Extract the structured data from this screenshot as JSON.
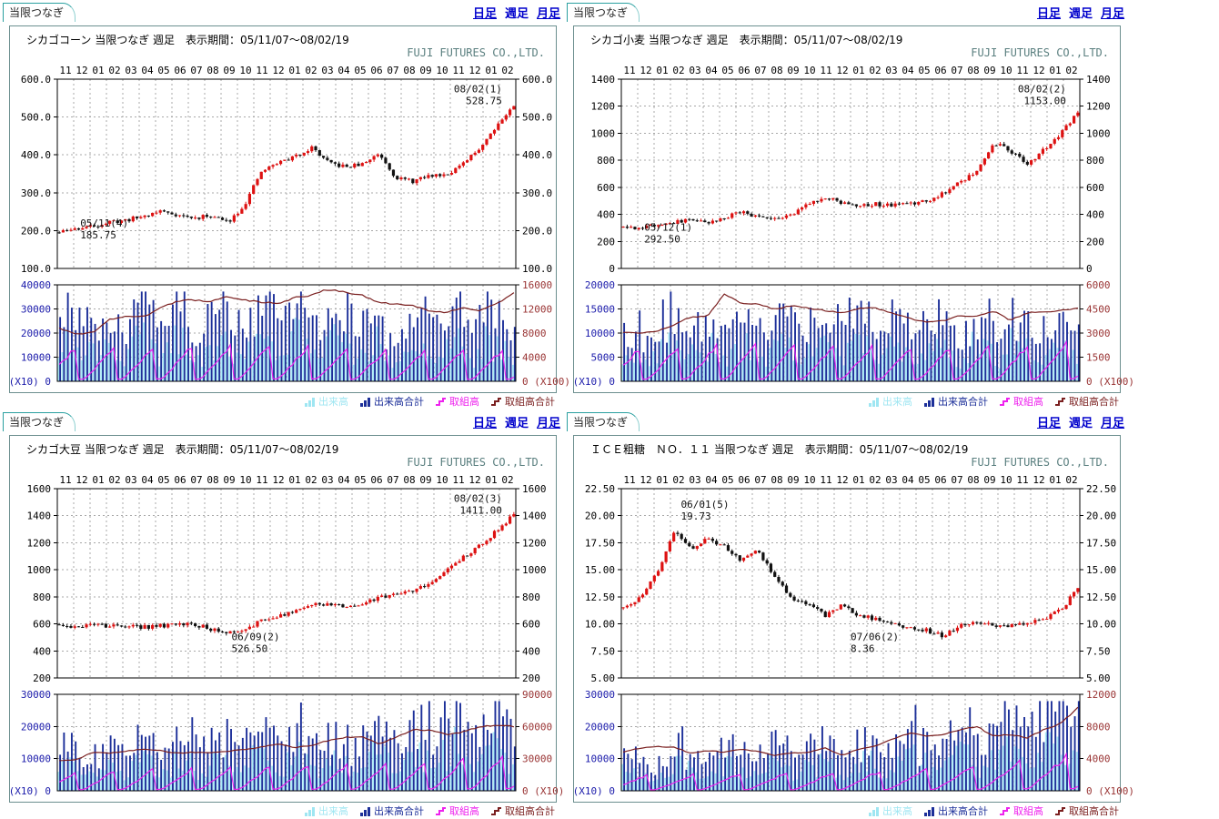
{
  "shared": {
    "tab_label": "当限つなぎ",
    "links": {
      "daily": "日足",
      "weekly": "週足",
      "monthly": "月足"
    },
    "brand": "FUJI FUTURES CO.,LTD.",
    "legend": [
      {
        "label": "出来高",
        "type": "bars",
        "color": "#9fe6f2"
      },
      {
        "label": "出来高合計",
        "type": "bars",
        "color": "#1c2f99"
      },
      {
        "label": "取組高",
        "type": "line",
        "color": "#ee22ee"
      },
      {
        "label": "取組高合計",
        "type": "line",
        "color": "#7a1f1f"
      }
    ],
    "colors": {
      "candle_up": "#dd1111",
      "candle_down": "#111111",
      "volume_week_bar": "#aaeaf6",
      "volume_total_bar": "#1c2f99",
      "open_interest_line": "#ee22ee",
      "open_interest_total_line": "#7a1f1f",
      "left_axis_text": "#1a1aaa",
      "right_axis_text": "#993333",
      "link": "#0000cc",
      "tab_border": "#2aa0a0",
      "brand_text": "#5a7f7f"
    }
  },
  "panels": [
    {
      "title": "シカゴコーン 当限つなぎ 週足　表示期間：05/11/07～08/02/19"
    },
    {
      "title": "シカゴ小麦 当限つなぎ 週足　表示期間：05/11/07～08/02/19"
    },
    {
      "title": "シカゴ大豆 当限つなぎ 週足　表示期間：05/11/07～08/02/19"
    },
    {
      "title": "ＩＣＥ粗糖　ＮＯ．１１ 当限つなぎ 週足　表示期間：05/11/07～08/02/19"
    }
  ],
  "chart_data": [
    {
      "type": "candlestick+volume",
      "name": "シカゴコーン 当限つなぎ 週足",
      "seed": 11,
      "x_months": [
        "11",
        "12",
        "01",
        "02",
        "03",
        "04",
        "05",
        "06",
        "07",
        "08",
        "09",
        "10",
        "11",
        "12",
        "01",
        "02",
        "03",
        "04",
        "05",
        "06",
        "07",
        "08",
        "09",
        "10",
        "11",
        "12",
        "01",
        "02"
      ],
      "price": {
        "ylim": [
          100,
          600
        ],
        "ticks": [
          600,
          500,
          400,
          300,
          200,
          100
        ],
        "tick_labels": [
          "600.0",
          "500.0",
          "400.0",
          "300.0",
          "200.0",
          "100.0"
        ],
        "weeks": 118,
        "monthly_close_anchors": [
          195,
          205,
          212,
          222,
          228,
          238,
          252,
          242,
          232,
          240,
          222,
          268,
          355,
          380,
          395,
          420,
          378,
          368,
          375,
          405,
          340,
          330,
          345,
          350,
          375,
          420,
          480,
          528.75
        ]
      },
      "annotations": [
        {
          "l1": "05/11(4)",
          "l2": "185.75",
          "fx": 0.05,
          "fy": 0.78,
          "anchor": "start"
        },
        {
          "l1": "08/02(1)",
          "l2": "528.75",
          "fx": 0.97,
          "fy": 0.07,
          "anchor": "end"
        }
      ],
      "volume": {
        "left_max": 40000,
        "right_max": 16000,
        "left_mult": "(X10)",
        "right_mult": "(X100)",
        "left_ticks": [
          {
            "label": "40000",
            "f": 1
          },
          {
            "label": "30000",
            "f": 0.75
          },
          {
            "label": "20000",
            "f": 0.5
          },
          {
            "label": "10000",
            "f": 0.25
          }
        ],
        "right_ticks": [
          {
            "label": "16000",
            "f": 1
          },
          {
            "label": "12000",
            "f": 0.75
          },
          {
            "label": "8000",
            "f": 0.5
          },
          {
            "label": "4000",
            "f": 0.25
          }
        ],
        "trend": [
          1,
          1.05,
          1.1,
          0.95,
          1.0
        ],
        "oi_cycle_weeks": 10,
        "oi_peak": 0.37,
        "oi_total_anchors": [
          8800,
          7800,
          8100,
          10300,
          10700,
          10700,
          12100,
          13300,
          13500,
          13200,
          14000,
          13500,
          13100,
          12900,
          13900,
          14300,
          15300,
          14700,
          14300,
          13100,
          12800,
          12500,
          11700,
          11400,
          12200,
          11700,
          13000,
          14600
        ]
      }
    },
    {
      "type": "candlestick+volume",
      "name": "シカゴ小麦 当限つなぎ 週足",
      "seed": 22,
      "x_months": [
        "11",
        "12",
        "01",
        "02",
        "03",
        "04",
        "05",
        "06",
        "07",
        "08",
        "09",
        "10",
        "11",
        "12",
        "01",
        "02",
        "03",
        "04",
        "05",
        "06",
        "07",
        "08",
        "09",
        "10",
        "11",
        "12",
        "01",
        "02"
      ],
      "price": {
        "ylim": [
          0,
          1400
        ],
        "ticks": [
          1400,
          1200,
          1000,
          800,
          600,
          400,
          200,
          0
        ],
        "tick_labels": [
          "1400",
          "1200",
          "1000",
          "800",
          "600",
          "400",
          "200",
          "0"
        ],
        "weeks": 118,
        "monthly_close_anchors": [
          305,
          300,
          330,
          345,
          360,
          345,
          375,
          415,
          385,
          365,
          395,
          480,
          530,
          490,
          470,
          475,
          465,
          480,
          500,
          560,
          640,
          720,
          930,
          870,
          770,
          880,
          1000,
          1153
        ]
      },
      "annotations": [
        {
          "l1": "05/12(1)",
          "l2": "292.50",
          "fx": 0.05,
          "fy": 0.8,
          "anchor": "start"
        },
        {
          "l1": "08/02(2)",
          "l2": "1153.00",
          "fx": 0.97,
          "fy": 0.07,
          "anchor": "end"
        }
      ],
      "volume": {
        "left_max": 20000,
        "right_max": 6000,
        "left_mult": "(X10)",
        "right_mult": "(X100)",
        "left_ticks": [
          {
            "label": "20000",
            "f": 1
          },
          {
            "label": "15000",
            "f": 0.75
          },
          {
            "label": "10000",
            "f": 0.5
          },
          {
            "label": "5000",
            "f": 0.25
          }
        ],
        "right_ticks": [
          {
            "label": "6000",
            "f": 1
          },
          {
            "label": "4500",
            "f": 0.75
          },
          {
            "label": "3000",
            "f": 0.5
          },
          {
            "label": "1500",
            "f": 0.25
          }
        ],
        "trend": [
          0.85,
          1.0,
          0.95,
          0.9,
          1.05
        ],
        "oi_cycle_weeks": 10,
        "oi_peak": 0.42,
        "oi_total_anchors": [
          3050,
          3000,
          3100,
          3500,
          4000,
          4050,
          5400,
          4850,
          4800,
          4500,
          4700,
          4550,
          4400,
          4250,
          4550,
          4550,
          4250,
          3900,
          3700,
          3750,
          4100,
          4050,
          4350,
          3800,
          4250,
          4350,
          4400,
          4550
        ]
      }
    },
    {
      "type": "candlestick+volume",
      "name": "シカゴ大豆 当限つなぎ 週足",
      "seed": 33,
      "x_months": [
        "11",
        "12",
        "01",
        "02",
        "03",
        "04",
        "05",
        "06",
        "07",
        "08",
        "09",
        "10",
        "11",
        "12",
        "01",
        "02",
        "03",
        "04",
        "05",
        "06",
        "07",
        "08",
        "09",
        "10",
        "11",
        "12",
        "01",
        "02"
      ],
      "price": {
        "ylim": [
          200,
          1600
        ],
        "ticks": [
          1600,
          1400,
          1200,
          1000,
          800,
          600,
          400,
          200
        ],
        "tick_labels": [
          "1600",
          "1400",
          "1200",
          "1000",
          "800",
          "600",
          "400",
          "200"
        ],
        "weeks": 118,
        "monthly_close_anchors": [
          590,
          570,
          600,
          580,
          590,
          575,
          585,
          595,
          600,
          560,
          535,
          560,
          620,
          660,
          690,
          740,
          750,
          720,
          740,
          800,
          820,
          835,
          900,
          1000,
          1090,
          1180,
          1290,
          1411
        ]
      },
      "annotations": [
        {
          "l1": "06/09(2)",
          "l2": "526.50",
          "fx": 0.38,
          "fy": 0.8,
          "anchor": "start"
        },
        {
          "l1": "08/02(3)",
          "l2": "1411.00",
          "fx": 0.97,
          "fy": 0.07,
          "anchor": "end"
        }
      ],
      "volume": {
        "left_max": 30000,
        "right_max": 90000,
        "left_mult": "(X10)",
        "right_mult": "(X10)",
        "left_ticks": [
          {
            "label": "30000",
            "f": 1
          },
          {
            "label": "20000",
            "f": 0.6667
          },
          {
            "label": "10000",
            "f": 0.3333
          }
        ],
        "right_ticks": [
          {
            "label": "90000",
            "f": 1
          },
          {
            "label": "60000",
            "f": 0.6667
          },
          {
            "label": "30000",
            "f": 0.3333
          }
        ],
        "trend": [
          0.6,
          0.75,
          0.85,
          0.95,
          1.2
        ],
        "oi_cycle_weeks": 10,
        "oi_peak": 0.33,
        "oi_total_anchors": [
          28000,
          29000,
          36000,
          35000,
          37000,
          39000,
          37500,
          35000,
          36000,
          35500,
          37000,
          38500,
          41000,
          44000,
          40000,
          42500,
          47000,
          50000,
          50500,
          43500,
          50000,
          57000,
          56500,
          52500,
          55000,
          60000,
          61500,
          60000
        ]
      }
    },
    {
      "type": "candlestick+volume",
      "name": "ＩＣＥ粗糖 ＮＯ．１１ 当限つなぎ 週足",
      "seed": 44,
      "x_months": [
        "11",
        "12",
        "01",
        "02",
        "03",
        "04",
        "05",
        "06",
        "07",
        "08",
        "09",
        "10",
        "11",
        "12",
        "01",
        "02",
        "03",
        "04",
        "05",
        "06",
        "07",
        "08",
        "09",
        "10",
        "11",
        "12",
        "01",
        "02"
      ],
      "price": {
        "ylim": [
          5,
          22.5
        ],
        "ticks": [
          22.5,
          20,
          17.5,
          15,
          12.5,
          10,
          7.5,
          5
        ],
        "tick_labels": [
          "22.50",
          "20.00",
          "17.50",
          "15.00",
          "12.50",
          "10.00",
          "7.50",
          "5.00"
        ],
        "weeks": 118,
        "monthly_close_anchors": [
          11.4,
          12.4,
          14.6,
          18.6,
          17.0,
          17.8,
          17.2,
          15.8,
          16.8,
          14.3,
          12.4,
          11.9,
          10.8,
          11.7,
          10.8,
          10.4,
          10.0,
          9.6,
          9.4,
          8.9,
          9.8,
          10.1,
          9.9,
          9.8,
          10.0,
          10.4,
          11.3,
          13.3
        ]
      },
      "annotations": [
        {
          "l1": "06/01(5)",
          "l2": "19.73",
          "fx": 0.13,
          "fy": 0.1,
          "anchor": "start"
        },
        {
          "l1": "07/06(2)",
          "l2": "8.36",
          "fx": 0.5,
          "fy": 0.8,
          "anchor": "start"
        }
      ],
      "volume": {
        "left_max": 30000,
        "right_max": 12000,
        "left_mult": "(X10)",
        "right_mult": "(X100)",
        "left_ticks": [
          {
            "label": "30000",
            "f": 1
          },
          {
            "label": "20000",
            "f": 0.6667
          },
          {
            "label": "10000",
            "f": 0.3333
          }
        ],
        "right_ticks": [
          {
            "label": "12000",
            "f": 1
          },
          {
            "label": "8000",
            "f": 0.6667
          },
          {
            "label": "4000",
            "f": 0.3333
          }
        ],
        "trend": [
          0.55,
          0.65,
          0.7,
          0.9,
          1.35
        ],
        "oi_cycle_weeks": 12,
        "oi_peak": 0.3,
        "oi_total_anchors": [
          4800,
          5300,
          5500,
          5400,
          4700,
          5000,
          4800,
          5200,
          4900,
          4400,
          4700,
          4800,
          5300,
          4400,
          5200,
          5600,
          6400,
          7200,
          6800,
          7000,
          7600,
          8000,
          6800,
          7000,
          6600,
          7600,
          8400,
          10400
        ]
      }
    }
  ]
}
